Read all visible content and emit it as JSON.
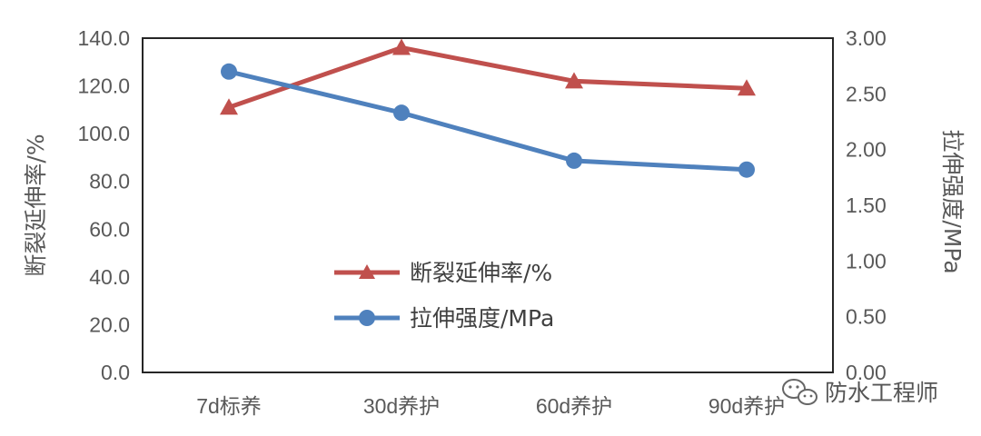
{
  "chart_data": {
    "type": "line",
    "categories": [
      "7d标养",
      "30d养护",
      "60d养护",
      "90d养护"
    ],
    "series": [
      {
        "name": "断裂延伸率/%",
        "axis": "left",
        "color": "#c0504d",
        "marker": "triangle",
        "values": [
          111,
          136,
          122,
          119
        ]
      },
      {
        "name": "拉伸强度/MPa",
        "axis": "right",
        "color": "#4f81bd",
        "marker": "circle",
        "values": [
          2.7,
          2.33,
          1.9,
          1.82
        ]
      }
    ],
    "ylabel": "断裂延伸率/%",
    "ylabel_right": "拉伸强度/MPa",
    "ylim": [
      0,
      140
    ],
    "ylim_right": [
      0,
      3
    ],
    "yticks": [
      "0.0",
      "20.0",
      "40.0",
      "60.0",
      "80.0",
      "100.0",
      "120.0",
      "140.0"
    ],
    "yticks_right": [
      "0.00",
      "0.50",
      "1.00",
      "1.50",
      "2.00",
      "2.50",
      "3.00"
    ],
    "grid": false,
    "legend_position": "center"
  },
  "watermark": {
    "text": "防水工程师",
    "icon": "wechat-icon"
  }
}
